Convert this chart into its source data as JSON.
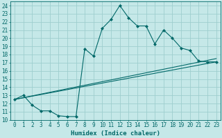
{
  "title": "",
  "xlabel": "Humidex (Indice chaleur)",
  "ylabel": "",
  "bg_color": "#c5e8e8",
  "grid_color": "#9ecece",
  "line_color": "#006868",
  "xlim": [
    -0.5,
    23.5
  ],
  "ylim": [
    10,
    24.5
  ],
  "xticks": [
    0,
    1,
    2,
    3,
    4,
    5,
    6,
    7,
    8,
    9,
    10,
    11,
    12,
    13,
    14,
    15,
    16,
    17,
    18,
    19,
    20,
    21,
    22,
    23
  ],
  "yticks": [
    10,
    11,
    12,
    13,
    14,
    15,
    16,
    17,
    18,
    19,
    20,
    21,
    22,
    23,
    24
  ],
  "line1_x": [
    0,
    1,
    2,
    3,
    4,
    5,
    6,
    7,
    8,
    9,
    10,
    11,
    12,
    13,
    14,
    15,
    16,
    17,
    18,
    19,
    20,
    21,
    22,
    23
  ],
  "line1_y": [
    12.5,
    13.0,
    11.8,
    11.1,
    11.1,
    10.5,
    10.4,
    10.4,
    18.7,
    17.8,
    21.2,
    22.3,
    24.0,
    22.5,
    21.5,
    21.5,
    19.3,
    21.0,
    20.0,
    18.8,
    18.5,
    17.2,
    17.1,
    17.1
  ],
  "line2_x": [
    0,
    23
  ],
  "line2_y": [
    12.5,
    17.1
  ],
  "line3_x": [
    0,
    23
  ],
  "line3_y": [
    12.5,
    17.5
  ],
  "marker_size": 2.5,
  "font_size": 5.5,
  "xlabel_fontsize": 6.5
}
